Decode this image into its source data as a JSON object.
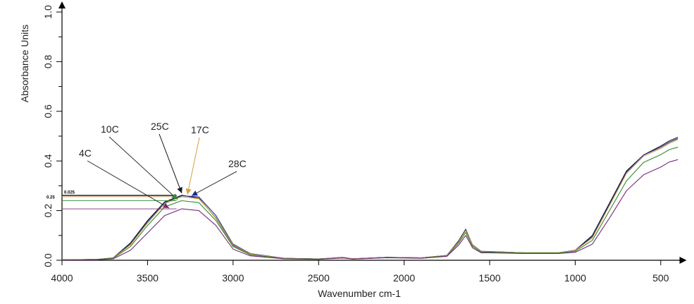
{
  "chart_data": {
    "type": "line",
    "title": "",
    "xlabel": "Wavenumber cm-1",
    "ylabel": "Absorbance Units",
    "xlim": [
      4000,
      390
    ],
    "ylim": [
      0,
      1.0
    ],
    "x_reversed": true,
    "grid": false,
    "xticks": [
      4000,
      3500,
      3000,
      2500,
      2000,
      1500,
      1000,
      500
    ],
    "yticks": [
      "0.0",
      "0.2",
      "0.4",
      "0.6",
      "0.8",
      "1.0"
    ],
    "x": [
      4000,
      3800,
      3700,
      3600,
      3500,
      3400,
      3300,
      3200,
      3100,
      3000,
      2900,
      2700,
      2500,
      2360,
      2300,
      2100,
      1900,
      1750,
      1680,
      1640,
      1600,
      1550,
      1500,
      1300,
      1100,
      1000,
      900,
      800,
      700,
      600,
      500,
      450,
      400
    ],
    "series": [
      {
        "name": "25C",
        "color": "#1a1a2e",
        "values": [
          0.002,
          0.003,
          0.01,
          0.07,
          0.16,
          0.235,
          0.262,
          0.25,
          0.17,
          0.06,
          0.025,
          0.008,
          0.005,
          0.012,
          0.006,
          0.012,
          0.01,
          0.02,
          0.08,
          0.125,
          0.06,
          0.036,
          0.035,
          0.03,
          0.03,
          0.04,
          0.1,
          0.23,
          0.36,
          0.43,
          0.465,
          0.48,
          0.49
        ]
      },
      {
        "name": "28C",
        "color": "#1c2a8c",
        "values": [
          0.002,
          0.003,
          0.009,
          0.065,
          0.155,
          0.232,
          0.26,
          0.255,
          0.18,
          0.065,
          0.027,
          0.008,
          0.005,
          0.011,
          0.006,
          0.012,
          0.01,
          0.02,
          0.078,
          0.122,
          0.062,
          0.036,
          0.035,
          0.03,
          0.03,
          0.04,
          0.095,
          0.225,
          0.355,
          0.43,
          0.46,
          0.475,
          0.485
        ]
      },
      {
        "name": "17C",
        "color": "#d4a040",
        "values": [
          0.002,
          0.003,
          0.009,
          0.062,
          0.15,
          0.228,
          0.256,
          0.248,
          0.172,
          0.062,
          0.025,
          0.008,
          0.005,
          0.011,
          0.006,
          0.011,
          0.01,
          0.02,
          0.075,
          0.12,
          0.06,
          0.035,
          0.034,
          0.03,
          0.03,
          0.039,
          0.09,
          0.22,
          0.35,
          0.425,
          0.455,
          0.47,
          0.48
        ]
      },
      {
        "name": "10C",
        "color": "#2e8b2e",
        "values": [
          0.002,
          0.003,
          0.008,
          0.055,
          0.14,
          0.215,
          0.24,
          0.232,
          0.16,
          0.055,
          0.022,
          0.007,
          0.005,
          0.01,
          0.005,
          0.011,
          0.009,
          0.018,
          0.07,
          0.112,
          0.056,
          0.033,
          0.033,
          0.029,
          0.029,
          0.036,
          0.08,
          0.2,
          0.32,
          0.4,
          0.43,
          0.445,
          0.45
        ]
      },
      {
        "name": "4C",
        "color": "#7a2a7a",
        "values": [
          0.001,
          0.002,
          0.006,
          0.04,
          0.11,
          0.18,
          0.207,
          0.2,
          0.14,
          0.045,
          0.018,
          0.006,
          0.004,
          0.009,
          0.005,
          0.01,
          0.008,
          0.016,
          0.062,
          0.1,
          0.05,
          0.03,
          0.03,
          0.027,
          0.027,
          0.032,
          0.065,
          0.17,
          0.28,
          0.35,
          0.38,
          0.395,
          0.4
        ]
      }
    ],
    "annotations": [
      {
        "text": "0.025",
        "y": 0.265
      },
      {
        "text": "0.25",
        "y": 0.25
      }
    ],
    "legend": "arrow-labels-top-left"
  }
}
